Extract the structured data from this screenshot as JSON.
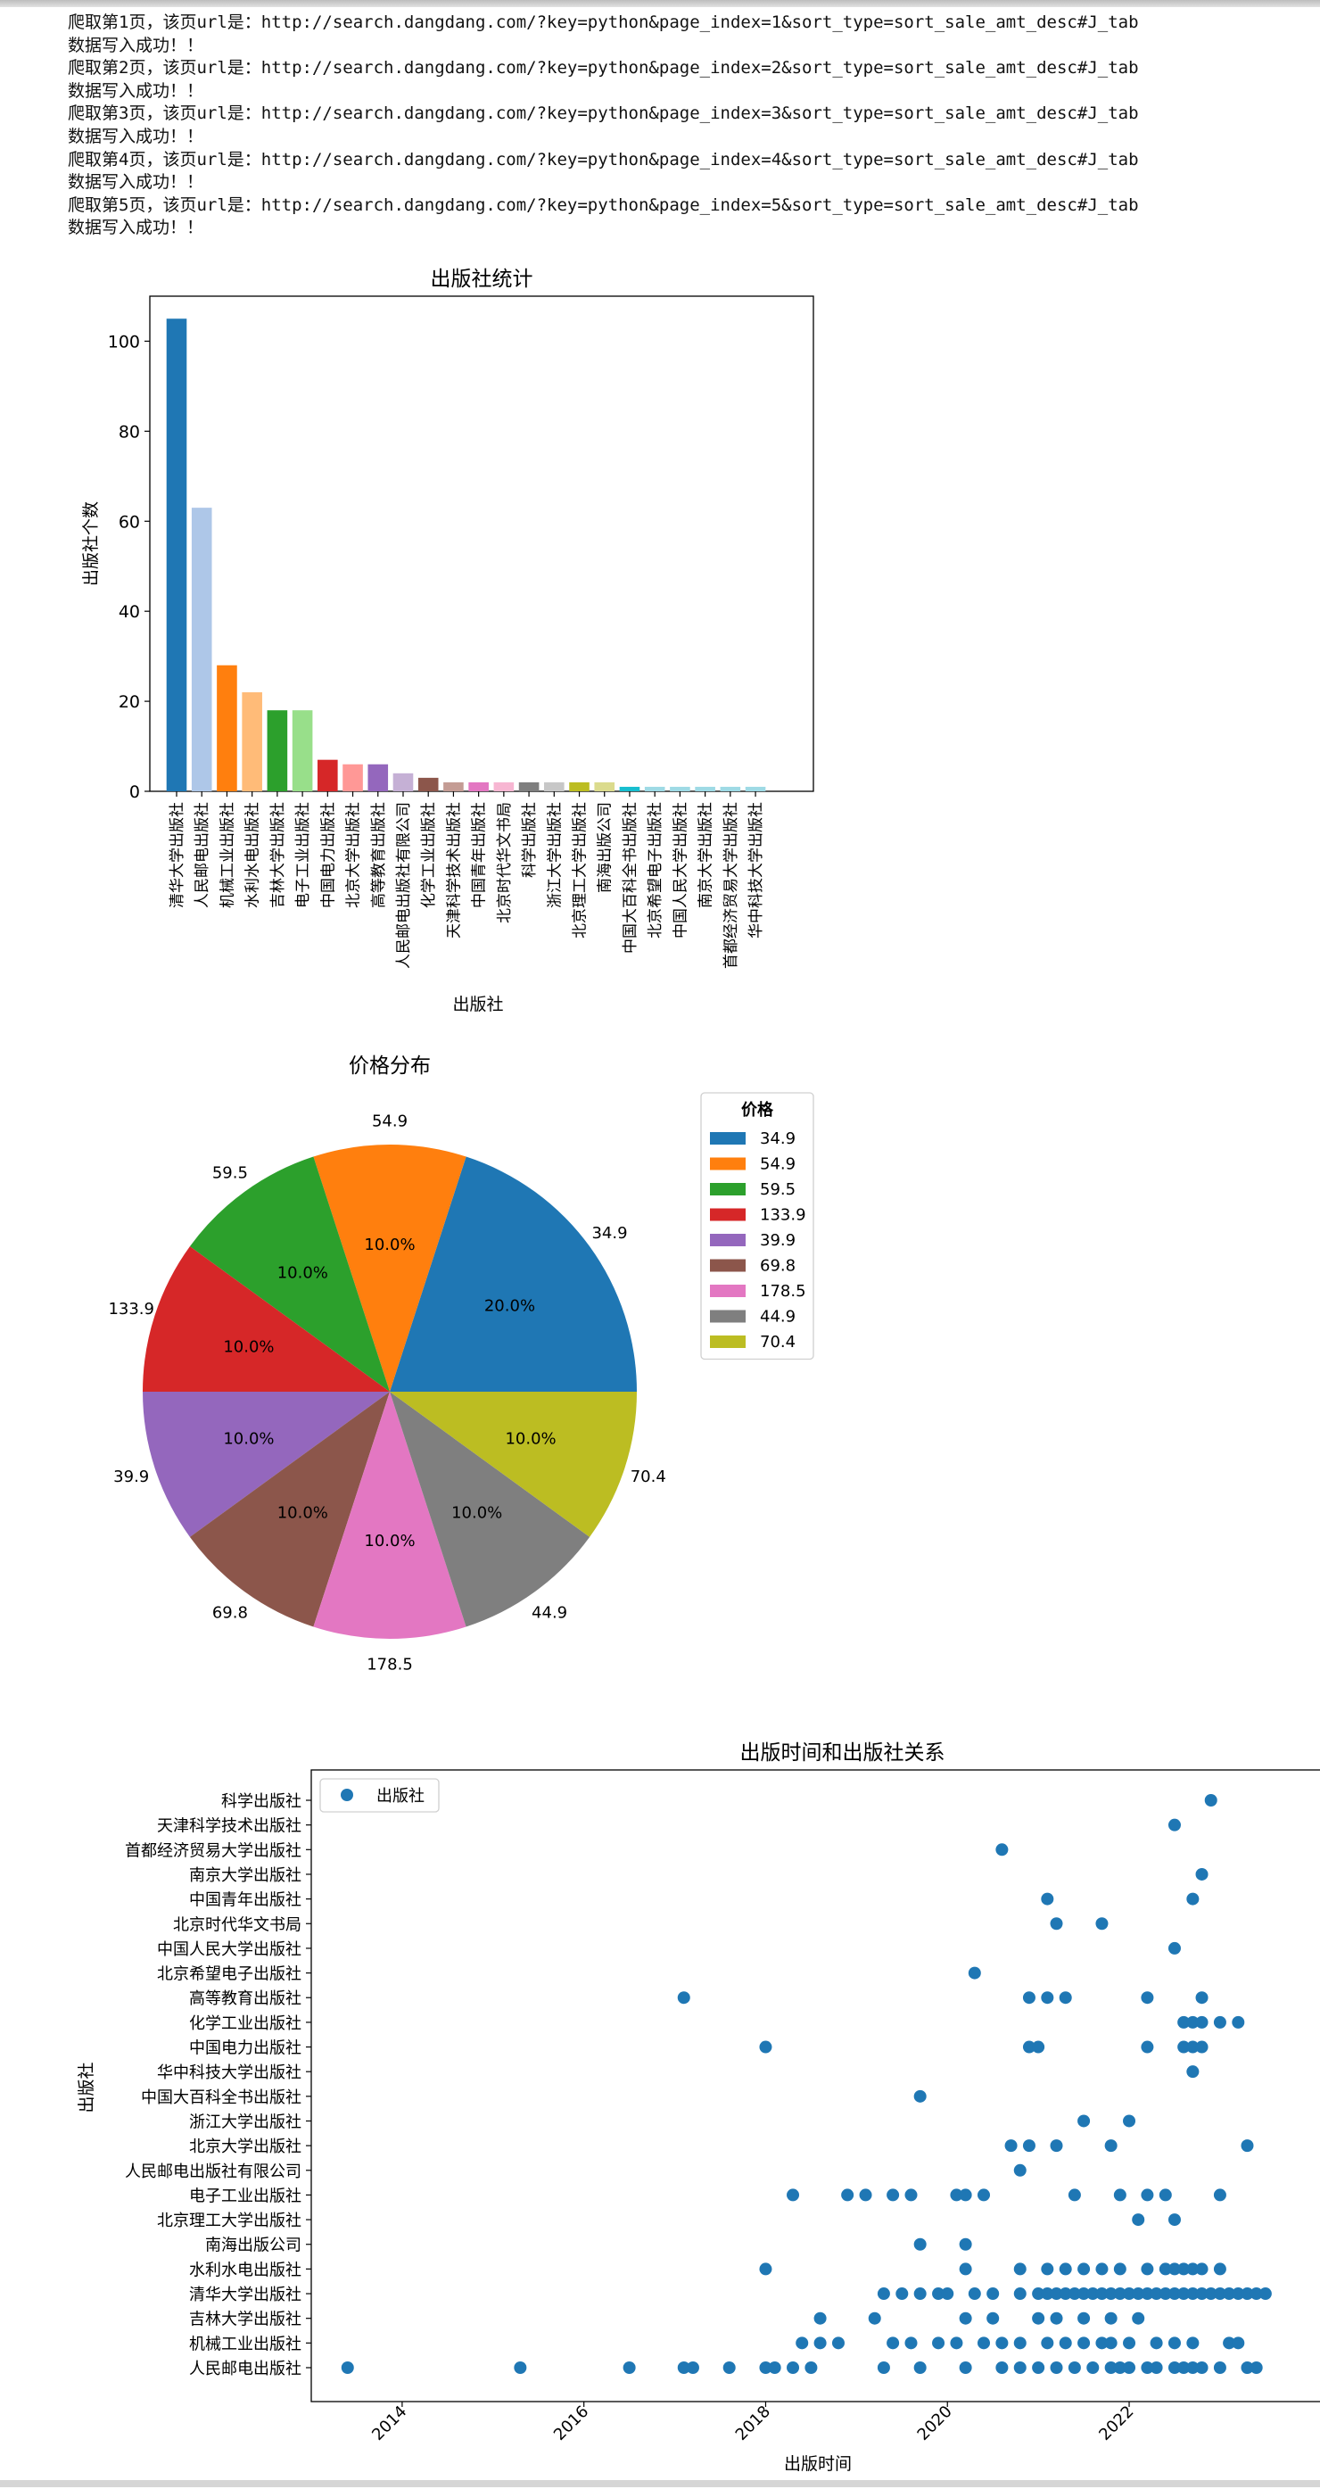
{
  "log_lines": [
    "爬取第1页，该页url是：http://search.dangdang.com/?key=python&page_index=1&sort_type=sort_sale_amt_desc#J_tab",
    "数据写入成功！！",
    "爬取第2页，该页url是：http://search.dangdang.com/?key=python&page_index=2&sort_type=sort_sale_amt_desc#J_tab",
    "数据写入成功！！",
    "爬取第3页，该页url是：http://search.dangdang.com/?key=python&page_index=3&sort_type=sort_sale_amt_desc#J_tab",
    "数据写入成功！！",
    "爬取第4页，该页url是：http://search.dangdang.com/?key=python&page_index=4&sort_type=sort_sale_amt_desc#J_tab",
    "数据写入成功！！",
    "爬取第5页，该页url是：http://search.dangdang.com/?key=python&page_index=5&sort_type=sort_sale_amt_desc#J_tab",
    "数据写入成功！！"
  ],
  "chart_data": [
    {
      "type": "bar",
      "title": "出版社统计",
      "xlabel": "出版社",
      "ylabel": "出版社个数",
      "ylim": [
        0,
        110
      ],
      "yticks": [
        0,
        20,
        40,
        60,
        80,
        100
      ],
      "categories": [
        "清华大学出版社",
        "人民邮电出版社",
        "机械工业出版社",
        "水利水电出版社",
        "吉林大学出版社",
        "电子工业出版社",
        "中国电力出版社",
        "北京大学出版社",
        "高等教育出版社",
        "人民邮电出版社有限公司",
        "化学工业出版社",
        "天津科学技术出版社",
        "中国青年出版社",
        "北京时代华文书局",
        "科学出版社",
        "浙江大学出版社",
        "北京理工大学出版社",
        "南海出版公司",
        "中国大百科全书出版社",
        "北京希望电子出版社",
        "中国人民大学出版社",
        "南京大学出版社",
        "首都经济贸易大学出版社",
        "华中科技大学出版社"
      ],
      "values": [
        105,
        63,
        28,
        22,
        18,
        18,
        7,
        6,
        6,
        4,
        3,
        2,
        2,
        2,
        2,
        2,
        2,
        2,
        1,
        1,
        1,
        1,
        1,
        1
      ],
      "colors": [
        "#1f77b4",
        "#aec7e8",
        "#ff7f0e",
        "#ffbb78",
        "#2ca02c",
        "#98df8a",
        "#d62728",
        "#ff9896",
        "#9467bd",
        "#c5b0d5",
        "#8c564b",
        "#c49c94",
        "#e377c2",
        "#f7b6d2",
        "#7f7f7f",
        "#c7c7c7",
        "#bcbd22",
        "#dbdb8d",
        "#17becf",
        "#9edae5",
        "#9edae5",
        "#9edae5",
        "#9edae5",
        "#9edae5"
      ],
      "grid": false
    },
    {
      "type": "pie",
      "title": "价格分布",
      "legend_title": "价格",
      "legend_position": "upper-right outside",
      "labels": [
        "34.9",
        "54.9",
        "59.5",
        "133.9",
        "39.9",
        "69.8",
        "178.5",
        "44.9",
        "70.4"
      ],
      "values": [
        20,
        10,
        10,
        10,
        10,
        10,
        10,
        10,
        10
      ],
      "pct_labels": [
        "20.0%",
        "10.0%",
        "10.0%",
        "10.0%",
        "10.0%",
        "10.0%",
        "10.0%",
        "10.0%",
        "10.0%"
      ],
      "colors": [
        "#1f77b4",
        "#ff7f0e",
        "#2ca02c",
        "#d62728",
        "#9467bd",
        "#8c564b",
        "#e377c2",
        "#7f7f7f",
        "#bcbd22"
      ]
    },
    {
      "type": "scatter",
      "title": "出版时间和出版社关系",
      "xlabel": "出版时间",
      "ylabel": "出版社",
      "legend": [
        "出版社"
      ],
      "legend_position": "upper-left",
      "color": "#1f77b4",
      "xlim": [
        2013.0,
        2024.1
      ],
      "xticks": [
        "2014",
        "2016",
        "2018",
        "2020",
        "2022"
      ],
      "categories": [
        "人民邮电出版社",
        "机械工业出版社",
        "吉林大学出版社",
        "清华大学出版社",
        "水利水电出版社",
        "南海出版公司",
        "北京理工大学出版社",
        "电子工业出版社",
        "人民邮电出版社有限公司",
        "北京大学出版社",
        "浙江大学出版社",
        "中国大百科全书出版社",
        "华中科技大学出版社",
        "中国电力出版社",
        "化学工业出版社",
        "高等教育出版社",
        "北京希望电子出版社",
        "中国人民大学出版社",
        "北京时代华文书局",
        "中国青年出版社",
        "南京大学出版社",
        "首都经济贸易大学出版社",
        "天津科学技术出版社",
        "科学出版社"
      ],
      "points": [
        [
          "人民邮电出版社",
          [
            2013.4,
            2015.3,
            2016.5,
            2017.1,
            2017.2,
            2017.6,
            2018.0,
            2018.1,
            2018.3,
            2018.5,
            2019.3,
            2019.7,
            2020.2,
            2020.6,
            2020.8,
            2021.0,
            2021.2,
            2021.4,
            2021.6,
            2021.8,
            2021.9,
            2022.0,
            2022.2,
            2022.3,
            2022.5,
            2022.6,
            2022.7,
            2022.8,
            2023.0,
            2023.3,
            2023.4
          ]
        ],
        [
          "机械工业出版社",
          [
            2018.4,
            2018.6,
            2018.8,
            2019.4,
            2019.6,
            2019.9,
            2020.1,
            2020.4,
            2020.6,
            2020.8,
            2021.1,
            2021.3,
            2021.5,
            2021.7,
            2021.8,
            2022.0,
            2022.3,
            2022.5,
            2022.7,
            2023.1,
            2023.2
          ]
        ],
        [
          "吉林大学出版社",
          [
            2018.6,
            2019.2,
            2020.2,
            2020.5,
            2021.0,
            2021.2,
            2021.5,
            2021.8,
            2022.1
          ]
        ],
        [
          "清华大学出版社",
          [
            2019.3,
            2019.5,
            2019.7,
            2019.9,
            2020.0,
            2020.3,
            2020.5,
            2020.8,
            2021.0,
            2021.1,
            2021.2,
            2021.3,
            2021.4,
            2021.5,
            2021.6,
            2021.7,
            2021.8,
            2021.9,
            2022.0,
            2022.1,
            2022.2,
            2022.3,
            2022.4,
            2022.5,
            2022.6,
            2022.7,
            2022.8,
            2022.9,
            2023.0,
            2023.1,
            2023.2,
            2023.3,
            2023.4,
            2023.5
          ]
        ],
        [
          "水利水电出版社",
          [
            2018.0,
            2020.2,
            2020.8,
            2021.1,
            2021.3,
            2021.5,
            2021.7,
            2021.9,
            2022.2,
            2022.4,
            2022.5,
            2022.6,
            2022.7,
            2022.8,
            2023.0
          ]
        ],
        [
          "南海出版公司",
          [
            2019.7,
            2020.2
          ]
        ],
        [
          "北京理工大学出版社",
          [
            2022.1,
            2022.5
          ]
        ],
        [
          "电子工业出版社",
          [
            2018.3,
            2018.9,
            2019.1,
            2019.4,
            2019.6,
            2020.1,
            2020.2,
            2020.4,
            2021.4,
            2021.9,
            2022.2,
            2022.4,
            2023.0
          ]
        ],
        [
          "人民邮电出版社有限公司",
          [
            2020.8
          ]
        ],
        [
          "北京大学出版社",
          [
            2020.7,
            2020.9,
            2021.2,
            2021.8,
            2023.3
          ]
        ],
        [
          "浙江大学出版社",
          [
            2021.5,
            2022.0
          ]
        ],
        [
          "中国大百科全书出版社",
          [
            2019.7
          ]
        ],
        [
          "华中科技大学出版社",
          [
            2022.7
          ]
        ],
        [
          "中国电力出版社",
          [
            2018.0,
            2020.9,
            2021.0,
            2022.2,
            2022.6,
            2022.7,
            2022.8
          ]
        ],
        [
          "化学工业出版社",
          [
            2022.6,
            2022.7,
            2022.8,
            2023.0,
            2023.2
          ]
        ],
        [
          "高等教育出版社",
          [
            2017.1,
            2020.9,
            2021.1,
            2021.3,
            2022.2,
            2022.8
          ]
        ],
        [
          "北京希望电子出版社",
          [
            2020.3
          ]
        ],
        [
          "中国人民大学出版社",
          [
            2022.5
          ]
        ],
        [
          "北京时代华文书局",
          [
            2021.2,
            2021.7
          ]
        ],
        [
          "中国青年出版社",
          [
            2021.1,
            2022.7
          ]
        ],
        [
          "南京大学出版社",
          [
            2022.8
          ]
        ],
        [
          "首都经济贸易大学出版社",
          [
            2020.6
          ]
        ],
        [
          "天津科学技术出版社",
          [
            2022.5
          ]
        ],
        [
          "科学出版社",
          [
            2022.9
          ]
        ]
      ]
    }
  ]
}
